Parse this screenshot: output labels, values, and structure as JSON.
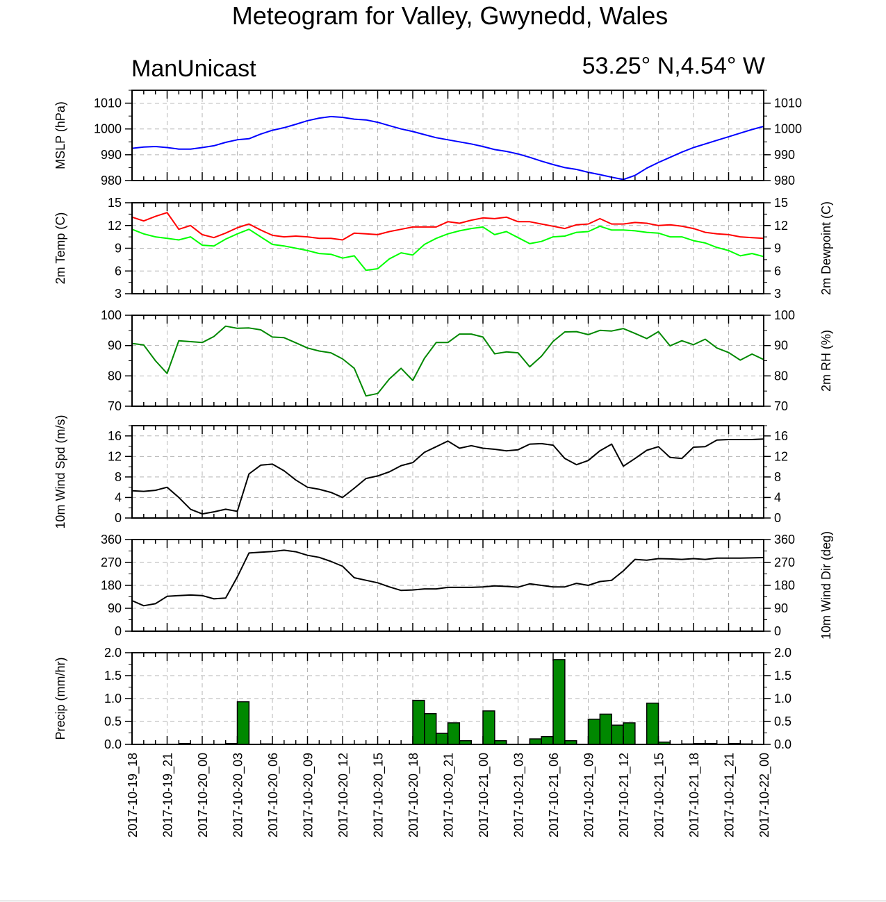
{
  "title": "Meteogram for Valley, Gwynedd, Wales",
  "model": "ManUnicast",
  "location": "53.25° N,4.54° W",
  "colors": {
    "mslp": "#0000ff",
    "temp": "#ff0000",
    "dewpoint": "#00ff00",
    "rh": "#008800",
    "wind": "#000000",
    "precip_fill": "#008800"
  },
  "chart_data": {
    "type": "meteogram",
    "x_hours": [
      0,
      1,
      2,
      3,
      4,
      5,
      6,
      7,
      8,
      9,
      10,
      11,
      12,
      13,
      14,
      15,
      16,
      17,
      18,
      19,
      20,
      21,
      22,
      23,
      24,
      25,
      26,
      27,
      28,
      29,
      30,
      31,
      32,
      33,
      34,
      35,
      36,
      37,
      38,
      39,
      40,
      41,
      42,
      43,
      44,
      45,
      46,
      47,
      48,
      49,
      50,
      51,
      52,
      53,
      54
    ],
    "x_tick_labels": [
      "2017-10-19_18",
      "2017-10-19_21",
      "2017-10-20_00",
      "2017-10-20_03",
      "2017-10-20_06",
      "2017-10-20_09",
      "2017-10-20_12",
      "2017-10-20_15",
      "2017-10-20_18",
      "2017-10-20_21",
      "2017-10-21_00",
      "2017-10-21_03",
      "2017-10-21_06",
      "2017-10-21_09",
      "2017-10-21_12",
      "2017-10-21_15",
      "2017-10-21_18",
      "2017-10-21_21",
      "2017-10-22_00"
    ],
    "panels": [
      {
        "type": "line",
        "ylabel_left": "MSLP (hPa)",
        "ylabel_right": "",
        "ylim": [
          980,
          1015
        ],
        "yticks": [
          980,
          990,
          1000,
          1010
        ],
        "series": [
          {
            "color_key": "mslp",
            "values": [
              992.5,
              993,
              993.2,
              992.8,
              992.2,
              992.2,
              992.8,
              993.5,
              994.8,
              995.8,
              996.2,
              998,
              999.5,
              1000.5,
              1001.8,
              1003.2,
              1004.2,
              1004.8,
              1004.5,
              1003.8,
              1003.5,
              1002.6,
              1001.3,
              1000,
              999,
              997.8,
              996.6,
              995.8,
              995,
              994.2,
              993.2,
              992,
              991.3,
              990.3,
              989,
              987.5,
              986.2,
              985,
              984.3,
              983.2,
              982.3,
              981.3,
              980.4,
              982,
              984.8,
              987,
              989,
              991,
              992.8,
              994.2,
              995.6,
              997,
              998.4,
              999.8,
              1001
            ]
          }
        ]
      },
      {
        "type": "line",
        "ylabel_left": "2m Temp (C)",
        "ylabel_right": "2m Dewpoint (C)",
        "ylim": [
          3,
          15
        ],
        "yticks": [
          3,
          6,
          9,
          12,
          15
        ],
        "series": [
          {
            "color_key": "temp",
            "values": [
              13.1,
              12.6,
              13.2,
              13.7,
              11.5,
              12,
              10.8,
              10.4,
              11,
              11.7,
              12.2,
              11.4,
              10.7,
              10.5,
              10.6,
              10.5,
              10.3,
              10.3,
              10.1,
              11,
              10.9,
              10.8,
              11.2,
              11.5,
              11.8,
              11.8,
              11.8,
              12.5,
              12.3,
              12.7,
              13,
              12.9,
              13.1,
              12.5,
              12.5,
              12.2,
              11.9,
              11.6,
              12.1,
              12.2,
              12.9,
              12.2,
              12.2,
              12.4,
              12.3,
              12,
              12.1,
              11.9,
              11.6,
              11.1,
              10.9,
              10.8,
              10.5,
              10.4,
              10.3
            ]
          },
          {
            "color_key": "dewpoint",
            "values": [
              11.5,
              10.9,
              10.5,
              10.3,
              10.1,
              10.5,
              9.4,
              9.3,
              10.2,
              10.9,
              11.5,
              10.5,
              9.5,
              9.3,
              9,
              8.7,
              8.3,
              8.2,
              7.7,
              8,
              6.1,
              6.3,
              7.6,
              8.4,
              8.1,
              9.5,
              10.3,
              10.9,
              11.3,
              11.6,
              11.8,
              10.8,
              11.2,
              10.4,
              9.6,
              9.9,
              10.5,
              10.6,
              11.1,
              11.2,
              11.9,
              11.4,
              11.4,
              11.3,
              11.1,
              11,
              10.5,
              10.5,
              10,
              9.7,
              9.1,
              8.7,
              8,
              8.3,
              7.9
            ]
          }
        ]
      },
      {
        "type": "line",
        "ylabel_left": "",
        "ylabel_right": "2m RH (%)",
        "ylim": [
          70,
          100
        ],
        "yticks": [
          70,
          80,
          90,
          100
        ],
        "series": [
          {
            "color_key": "rh",
            "values": [
              90.7,
              90.2,
              85,
              80.8,
              91.6,
              91.3,
              91,
              93,
              96.4,
              95.7,
              95.8,
              95.2,
              92.8,
              92.6,
              90.9,
              89.2,
              88.2,
              87.6,
              85.6,
              82.5,
              73.4,
              74.2,
              79,
              82.5,
              78.5,
              85.8,
              91,
              91,
              93.8,
              93.8,
              92.8,
              87.3,
              87.9,
              87.6,
              83,
              86.5,
              91.4,
              94.5,
              94.6,
              93.6,
              95,
              94.8,
              95.6,
              94,
              92.3,
              94.6,
              89.9,
              91.6,
              90.3,
              92.1,
              89.2,
              87.7,
              85.2,
              87.2,
              85.4
            ]
          }
        ]
      },
      {
        "type": "line",
        "ylabel_left": "10m Wind Spd (m/s)",
        "ylabel_right": "",
        "ylim": [
          0,
          18
        ],
        "yticks": [
          0,
          4,
          8,
          12,
          16
        ],
        "series": [
          {
            "color_key": "wind",
            "values": [
              5.3,
              5.2,
              5.4,
              6,
              4,
              1.7,
              0.8,
              1.2,
              1.7,
              1.3,
              8.6,
              10.3,
              10.5,
              9.2,
              7.4,
              6,
              5.6,
              5,
              4,
              5.8,
              7.7,
              8.2,
              9,
              10.2,
              10.8,
              12.8,
              13.9,
              15,
              13.6,
              14.1,
              13.6,
              13.4,
              13.1,
              13.3,
              14.4,
              14.5,
              14.2,
              11.6,
              10.4,
              11.2,
              13.1,
              14.4,
              10.1,
              11.6,
              13.2,
              13.9,
              11.8,
              11.6,
              13.8,
              13.9,
              15.2,
              15.3,
              15.3,
              15.3,
              15.4
            ]
          }
        ]
      },
      {
        "type": "line",
        "ylabel_left": "",
        "ylabel_right": "10m Wind Dir (deg)",
        "ylim": [
          0,
          360
        ],
        "yticks": [
          0,
          90,
          180,
          270,
          360
        ],
        "series": [
          {
            "color_key": "wind",
            "values": [
              120,
              100,
              108,
              137,
              140,
              142,
              140,
              127,
              130,
              213,
              307,
              310,
              313,
              318,
              312,
              298,
              290,
              274,
              255,
              210,
              200,
              190,
              174,
              160,
              162,
              166,
              166,
              172,
              172,
              172,
              174,
              178,
              176,
              173,
              186,
              180,
              174,
              174,
              188,
              180,
              195,
              200,
              237,
              282,
              279,
              285,
              284,
              282,
              285,
              282,
              287,
              287,
              287,
              288,
              289
            ]
          }
        ]
      },
      {
        "type": "bar",
        "ylabel_left": "Precip (mm/hr)",
        "ylabel_right": "",
        "ylim": [
          0,
          2.0
        ],
        "yticks": [
          0.0,
          0.5,
          1.0,
          1.5,
          2.0
        ],
        "ytick_labels": [
          "0.0",
          "0.5",
          "1.0",
          "1.5",
          "2.0"
        ],
        "bar_start_hours": [
          0,
          1,
          2,
          3,
          4,
          5,
          6,
          7,
          8,
          9,
          10,
          11,
          12,
          13,
          14,
          15,
          16,
          17,
          18,
          19,
          20,
          21,
          22,
          23,
          24,
          25,
          26,
          27,
          28,
          29,
          30,
          31,
          32,
          33,
          34,
          35,
          36,
          37,
          38,
          39,
          40,
          41,
          42,
          43,
          44,
          45,
          46,
          47,
          48,
          49,
          50,
          51,
          52,
          53
        ],
        "values": [
          0,
          0,
          0,
          0,
          0.02,
          0,
          0,
          0,
          0.02,
          0.93,
          0,
          0.01,
          0,
          0,
          0,
          0,
          0,
          0,
          0,
          0,
          0,
          0,
          0,
          0,
          0.96,
          0.67,
          0.24,
          0.47,
          0.08,
          0,
          0.73,
          0.08,
          0,
          0,
          0.12,
          0.17,
          1.85,
          0.08,
          0,
          0.55,
          0.66,
          0.42,
          0.47,
          0,
          0.9,
          0.05,
          0,
          0.01,
          0.02,
          0.02,
          0,
          0.02,
          0.01,
          0
        ]
      }
    ]
  }
}
